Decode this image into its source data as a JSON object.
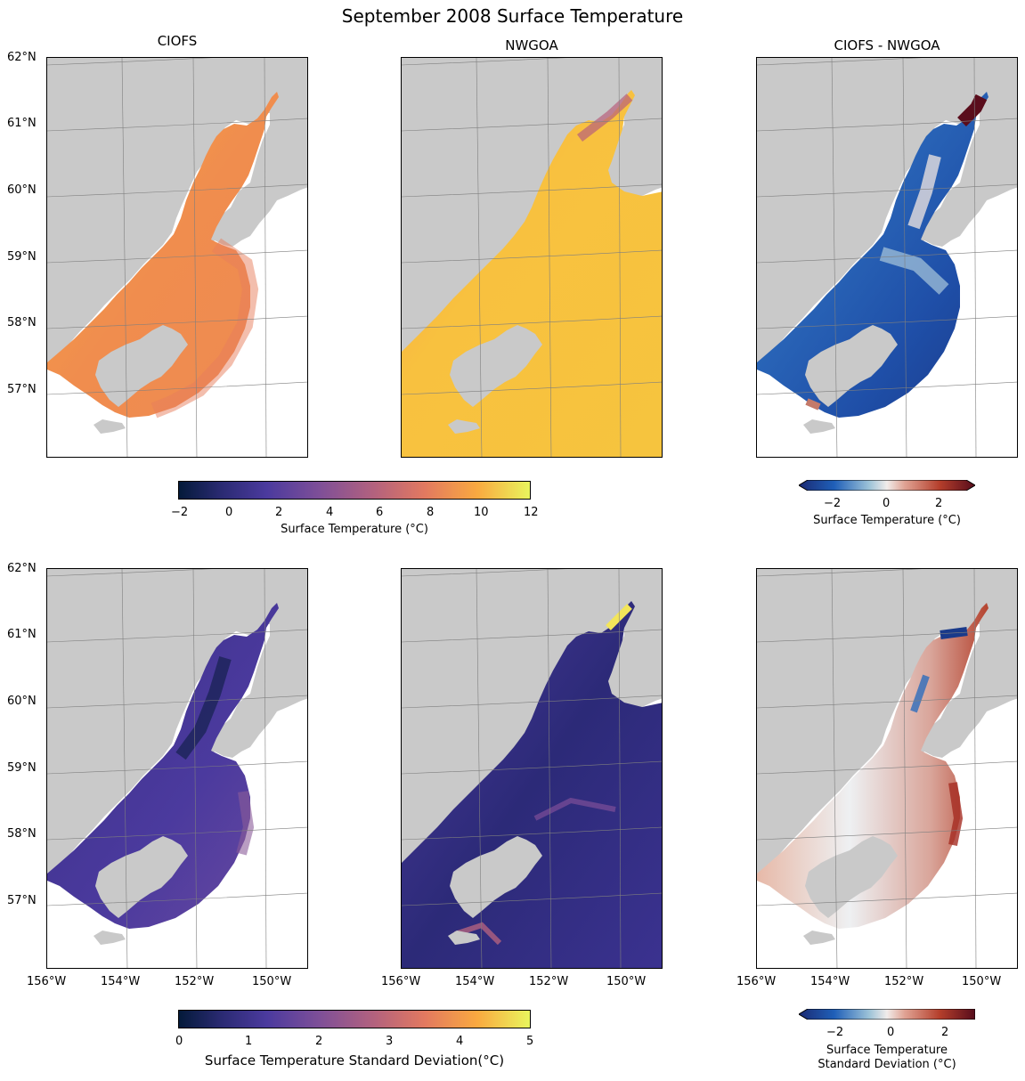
{
  "figure": {
    "title": "September 2008 Surface Temperature"
  },
  "columns": [
    "CIOFS",
    "NWGOA",
    "CIOFS - NWGOA"
  ],
  "map": {
    "lat_ticks": [
      "62°N",
      "61°N",
      "60°N",
      "59°N",
      "58°N",
      "57°N"
    ],
    "lon_ticks": [
      "156°W",
      "154°W",
      "152°W",
      "150°W"
    ],
    "land_color": "#c9c9c9",
    "grid_color": "#7f7f7f"
  },
  "colorbars": {
    "temp": {
      "label": "Surface Temperature (°C)",
      "ticks": [
        "−2",
        "0",
        "2",
        "4",
        "6",
        "8",
        "10",
        "12"
      ],
      "colormap": "thermal"
    },
    "temp_diff": {
      "label": "Surface Temperature (°C)",
      "ticks": [
        "−2",
        "0",
        "2"
      ],
      "colormap": "diverging-balance",
      "extend": "both"
    },
    "std": {
      "label": "Surface Temperature Standard Deviation(°C)",
      "ticks": [
        "0",
        "1",
        "2",
        "3",
        "4",
        "5"
      ],
      "colormap": "thermal"
    },
    "std_diff": {
      "label_line1": "Surface Temperature",
      "label_line2": "Standard Deviation (°C)",
      "ticks": [
        "−2",
        "0",
        "2"
      ],
      "colormap": "diverging-balance",
      "extend": "both"
    }
  }
}
